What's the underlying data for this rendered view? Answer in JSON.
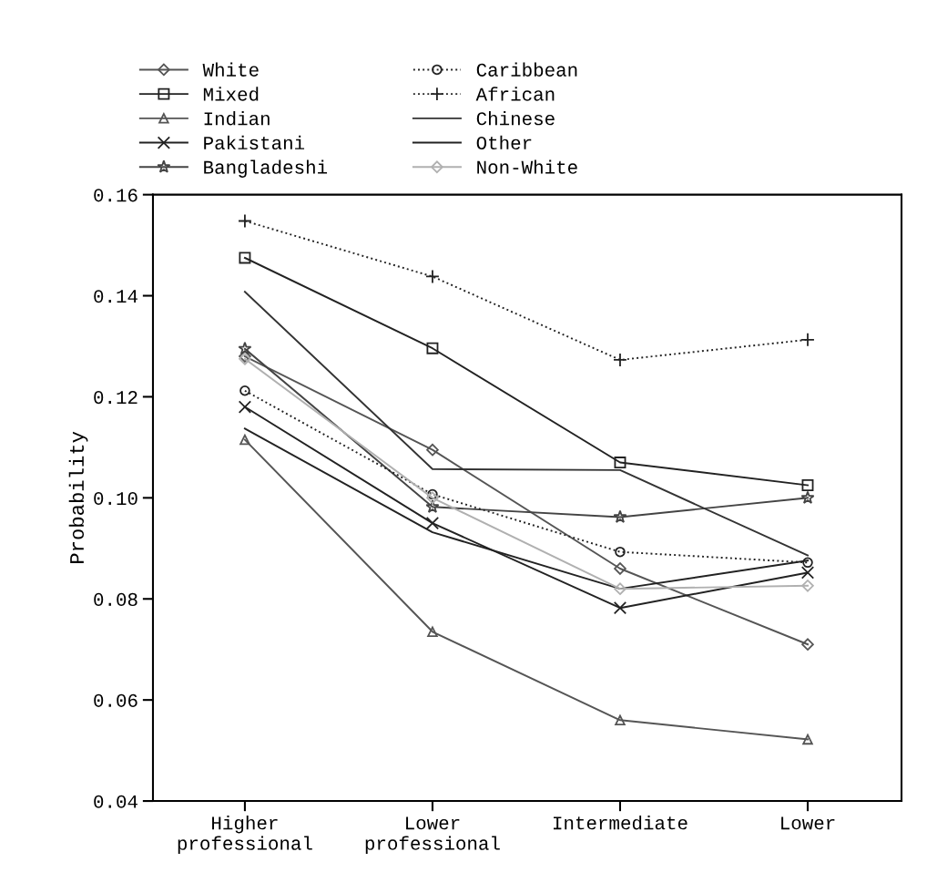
{
  "chart_data": {
    "type": "line",
    "ylabel": "Probability",
    "categories": [
      "Higher\nprofessional",
      "Lower\nprofessional",
      "Intermediate",
      "Lower"
    ],
    "ylim": [
      0.04,
      0.16
    ],
    "yticks": [
      {
        "value": 0.04,
        "label": "0.04"
      },
      {
        "value": 0.06,
        "label": "0.06"
      },
      {
        "value": 0.08,
        "label": "0.08"
      },
      {
        "value": 0.1,
        "label": "0.10"
      },
      {
        "value": 0.12,
        "label": "0.12"
      },
      {
        "value": 0.14,
        "label": "0.14"
      },
      {
        "value": 0.16,
        "label": "0.16"
      }
    ],
    "grid": false,
    "legend": "top",
    "series": [
      {
        "name": "White",
        "color": "#555555",
        "marker": "diamond",
        "line_style": "solid",
        "values": [
          0.128,
          0.1095,
          0.086,
          0.071
        ]
      },
      {
        "name": "Mixed",
        "color": "#222222",
        "marker": "square",
        "line_style": "solid",
        "values": [
          0.1475,
          0.1296,
          0.107,
          0.1025
        ]
      },
      {
        "name": "Indian",
        "color": "#555555",
        "marker": "triangle",
        "line_style": "solid",
        "values": [
          0.1115,
          0.0735,
          0.056,
          0.0522
        ]
      },
      {
        "name": "Pakistani",
        "color": "#222222",
        "marker": "x",
        "line_style": "solid",
        "values": [
          0.118,
          0.095,
          0.0782,
          0.0852
        ]
      },
      {
        "name": "Bangladeshi",
        "color": "#444444",
        "marker": "star",
        "line_style": "solid",
        "values": [
          0.1295,
          0.0982,
          0.0962,
          0.1
        ]
      },
      {
        "name": "Caribbean",
        "color": "#222222",
        "marker": "circle",
        "line_style": "dotted",
        "values": [
          0.1212,
          0.1007,
          0.0893,
          0.0872
        ]
      },
      {
        "name": "African",
        "color": "#222222",
        "marker": "plus",
        "line_style": "dotted",
        "values": [
          0.1548,
          0.1438,
          0.1273,
          0.1313
        ]
      },
      {
        "name": "Chinese",
        "color": "#333333",
        "marker": "none",
        "line_style": "solid",
        "values": [
          0.1408,
          0.1057,
          0.1055,
          0.0886
        ]
      },
      {
        "name": "Other",
        "color": "#222222",
        "marker": "none",
        "line_style": "solid",
        "values": [
          0.1137,
          0.0932,
          0.082,
          0.0876
        ]
      },
      {
        "name": "Non-White",
        "color": "#b0b0b0",
        "marker": "diamond",
        "line_style": "solid",
        "values": [
          0.1275,
          0.1,
          0.082,
          0.0826
        ]
      }
    ]
  }
}
